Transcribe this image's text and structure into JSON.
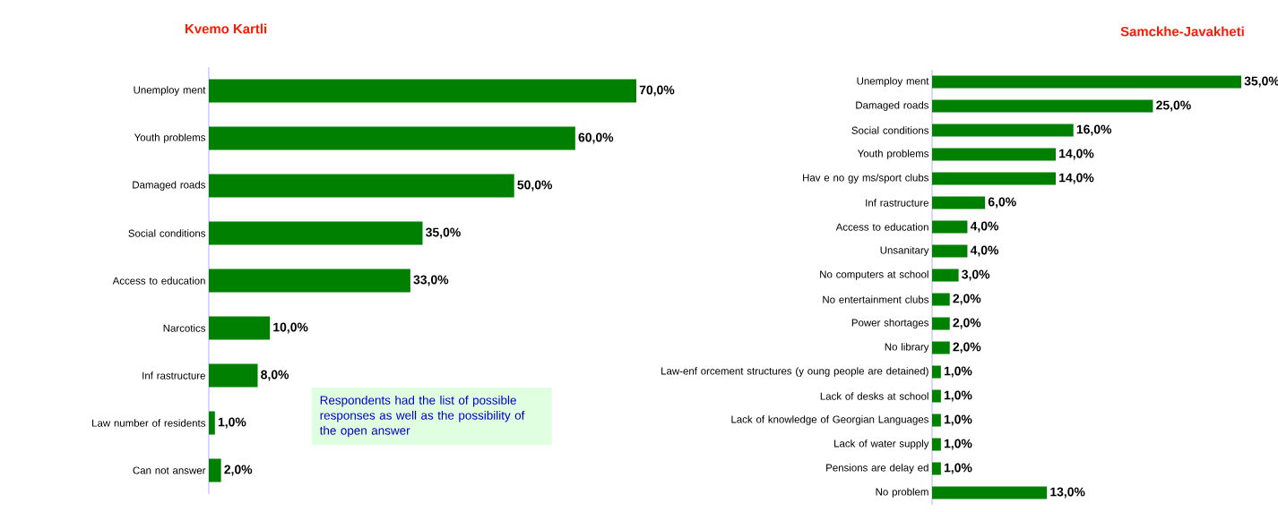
{
  "chart_data": [
    {
      "type": "bar",
      "orientation": "horizontal",
      "title": "Kvemo Kartli",
      "color": "#008000",
      "categories": [
        "Unemploy ment",
        "Youth problems",
        "Damaged roads",
        "Social conditions",
        "Access to education",
        "Narcotics",
        "Inf rastructure",
        "Law number of residents",
        "Can not answer"
      ],
      "values": [
        70,
        60,
        50,
        35,
        33,
        10,
        8,
        1,
        2
      ],
      "value_labels": [
        "70,0%",
        "60,0%",
        "50,0%",
        "35,0%",
        "33,0%",
        "10,0%",
        "8,0%",
        "1,0%",
        "2,0%"
      ],
      "annotations": [
        "Respondents had the list of possible responses as well as the possibility of the open answer"
      ]
    },
    {
      "type": "bar",
      "orientation": "horizontal",
      "title": "Samckhe-Javakheti",
      "color": "#008000",
      "categories": [
        "Unemploy ment",
        "Damaged roads",
        "Social conditions",
        "Youth problems",
        "Hav e no gy ms/sport clubs",
        "Inf rastructure",
        "Access to education",
        "Unsanitary",
        "No computers at school",
        "No entertainment clubs",
        "Power shortages",
        "No library",
        "Law-enf orcement structures (y oung people are detained)",
        "Lack of desks at school",
        "Lack of knowledge of Georgian Languages",
        "Lack of water supply",
        "Pensions are delay ed",
        "No problem"
      ],
      "values": [
        35,
        25,
        16,
        14,
        14,
        6,
        4,
        4,
        3,
        2,
        2,
        2,
        1,
        1,
        1,
        1,
        1,
        13
      ],
      "value_labels": [
        "35,0%",
        "25,0%",
        "16,0%",
        "14,0%",
        "14,0%",
        "6,0%",
        "4,0%",
        "4,0%",
        "3,0%",
        "2,0%",
        "2,0%",
        "2,0%",
        "1,0%",
        "1,0%",
        "1,0%",
        "1,0%",
        "1,0%",
        "13,0%"
      ]
    }
  ]
}
